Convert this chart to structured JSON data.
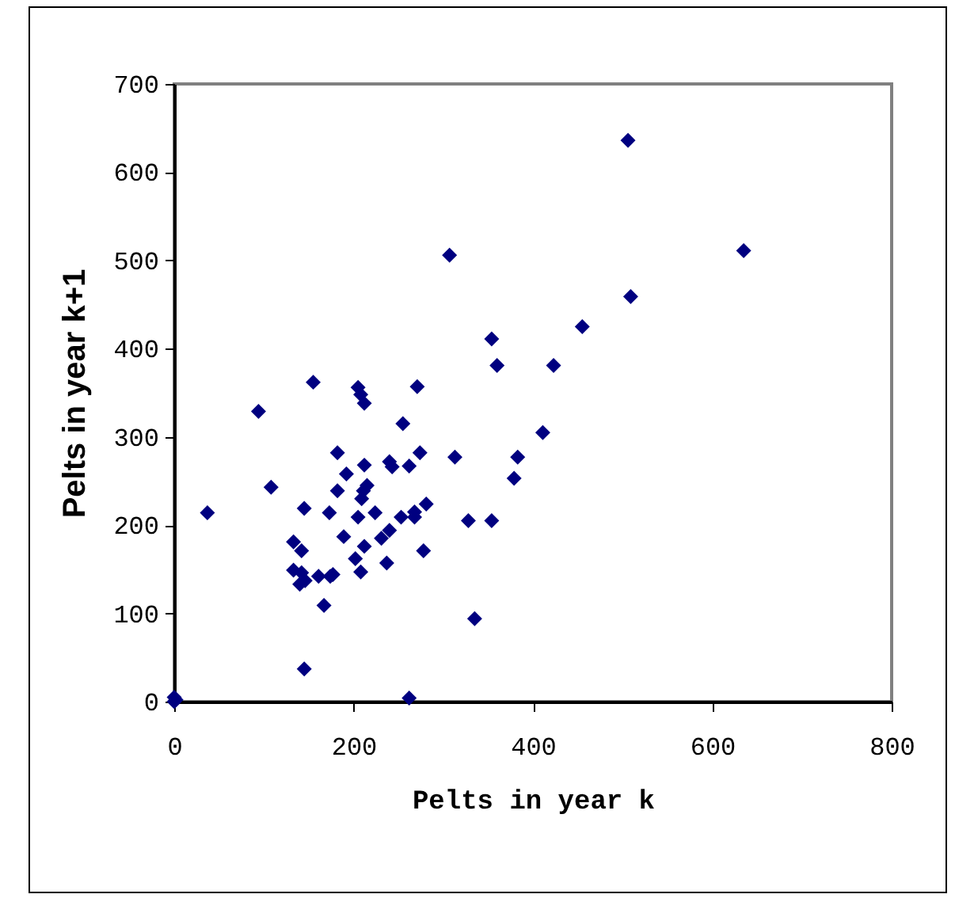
{
  "chart_data": {
    "type": "scatter",
    "xlabel": "Pelts in year k",
    "ylabel": "Pelts in year k+1",
    "x": [
      0,
      0,
      2,
      37,
      94,
      108,
      155,
      145,
      145,
      133,
      142,
      133,
      142,
      140,
      146,
      161,
      167,
      174,
      177,
      173,
      182,
      182,
      192,
      189,
      205,
      202,
      208,
      212,
      211,
      209,
      215,
      212,
      205,
      208,
      212,
      224,
      231,
      237,
      240,
      240,
      243,
      253,
      255,
      262,
      268,
      268,
      271,
      274,
      278,
      281,
      262,
      313,
      328,
      354,
      335,
      360,
      307,
      506,
      635,
      509,
      455,
      354,
      423,
      411,
      383,
      379
    ],
    "series": [
      {
        "color": "#000080",
        "values": [
          5,
          0,
          2,
          214,
          329,
          243,
          362,
          219,
          37,
          181,
          171,
          149,
          146,
          133,
          137,
          142,
          109,
          142,
          144,
          214,
          239,
          282,
          258,
          187,
          209,
          162,
          147,
          176,
          239,
          230,
          245,
          268,
          356,
          348,
          338,
          214,
          185,
          157,
          194,
          272,
          266,
          209,
          315,
          267,
          215,
          209,
          357,
          282,
          171,
          224,
          4,
          277,
          205,
          205,
          94,
          381,
          506,
          636,
          511,
          459,
          425,
          411,
          381,
          305,
          277,
          253
        ]
      }
    ],
    "xlim": [
      0,
      800
    ],
    "xticks": [
      0,
      200,
      400,
      600,
      800
    ],
    "ylim": [
      0,
      700
    ],
    "yticks": [
      0,
      100,
      200,
      300,
      400,
      500,
      600,
      700
    ],
    "marker": "diamond",
    "grid": false
  }
}
